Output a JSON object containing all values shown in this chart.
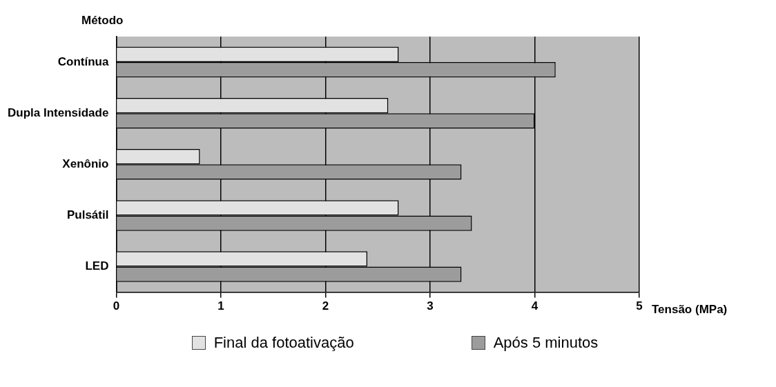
{
  "chart_data": {
    "type": "bar",
    "orientation": "horizontal",
    "ylabel": "Método",
    "xlabel": "Tensão (MPa)",
    "categories": [
      "Contínua",
      "Dupla Intensidade",
      "Xenônio",
      "Pulsátil",
      "LED"
    ],
    "series": [
      {
        "name": "Final da fotoativação",
        "color": "#e2e2e2",
        "values": [
          2.7,
          2.6,
          0.8,
          2.7,
          2.4
        ]
      },
      {
        "name": "Após 5 minutos",
        "color": "#9c9c9c",
        "values": [
          4.2,
          4.0,
          3.3,
          3.4,
          3.3
        ]
      }
    ],
    "xlim": [
      0,
      5
    ],
    "xticks": [
      0,
      1,
      2,
      3,
      4,
      5
    ],
    "grid": "x",
    "legend": "bottom"
  }
}
